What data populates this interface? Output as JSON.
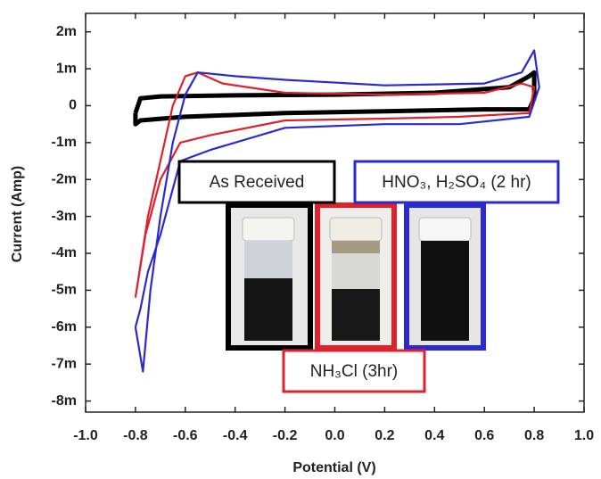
{
  "chart_data": {
    "type": "line",
    "x_label": "Potential (V)",
    "y_label": "Current (Amp)",
    "xlim": [
      -1,
      1
    ],
    "ylim": [
      -0.0083,
      0.0025
    ],
    "xticks": [
      {
        "value": -1,
        "label": "-1.0"
      },
      -0.8,
      -0.6,
      -0.4,
      -0.2,
      {
        "value": 0,
        "label": "0.0"
      },
      0.2,
      0.4,
      0.6,
      0.8,
      {
        "value": 1,
        "label": "1.0"
      }
    ],
    "yticks": [
      {
        "value": 0.002,
        "label": "2m"
      },
      {
        "value": 0.001,
        "label": "1m"
      },
      0,
      {
        "value": -0.001,
        "label": "-1m"
      },
      {
        "value": -0.002,
        "label": "-2m"
      },
      {
        "value": -0.003,
        "label": "-3m"
      },
      {
        "value": -0.004,
        "label": "-4m"
      },
      {
        "value": -0.005,
        "label": "-5m"
      },
      {
        "value": -0.006,
        "label": "-6m"
      },
      {
        "value": -0.007,
        "label": "-7m"
      },
      {
        "value": -0.008,
        "label": "-8m"
      }
    ],
    "series": [
      {
        "name": "As Received",
        "color": "#000000",
        "x": [
          -0.8,
          -0.78,
          -0.7,
          -0.4,
          0,
          0.4,
          0.7,
          0.78,
          0.8,
          0.8,
          0.78,
          0.6,
          0.2,
          -0.2,
          -0.6,
          -0.78,
          -0.8,
          -0.8
        ],
        "values": [
          -0.0002,
          0.0002,
          0.00025,
          0.00028,
          0.0003,
          0.00035,
          0.0005,
          0.0008,
          0.0009,
          0.0002,
          -0.0001,
          -0.0001,
          -0.00015,
          -0.0002,
          -0.0003,
          -0.0004,
          -0.0005,
          -0.0002
        ]
      },
      {
        "name": "NH₃Cl (3hr)",
        "color": "#e0202a",
        "x": [
          -0.8,
          -0.75,
          -0.7,
          -0.65,
          -0.6,
          -0.55,
          -0.45,
          -0.2,
          0.2,
          0.6,
          0.75,
          0.8,
          0.78,
          0.5,
          0.2,
          -0.2,
          -0.5,
          -0.62,
          -0.7,
          -0.76,
          -0.8
        ],
        "values": [
          -0.0052,
          -0.003,
          -0.0015,
          0,
          0.0008,
          0.0009,
          0.0006,
          0.00035,
          0.0003,
          0.00035,
          0.0006,
          0.0005,
          -0.0002,
          -0.0003,
          -0.00035,
          -0.0004,
          -0.0008,
          -0.001,
          -0.002,
          -0.0035,
          -0.0052
        ]
      },
      {
        "name": "HNO₃, H₂SO₄ (2 hr)",
        "color": "#2a2ad0",
        "x": [
          -0.8,
          -0.77,
          -0.74,
          -0.7,
          -0.65,
          -0.6,
          -0.55,
          -0.4,
          -0.2,
          0.2,
          0.6,
          0.75,
          0.8,
          0.82,
          0.78,
          0.5,
          0.2,
          -0.2,
          -0.5,
          -0.62,
          -0.7,
          -0.75,
          -0.78,
          -0.8
        ],
        "values": [
          -0.006,
          -0.0072,
          -0.005,
          -0.003,
          -0.001,
          0.0003,
          0.0009,
          0.0008,
          0.0007,
          0.00055,
          0.0006,
          0.0009,
          0.0015,
          0.0005,
          -0.0003,
          -0.0005,
          -0.0005,
          -0.0006,
          -0.0012,
          -0.0015,
          -0.0035,
          -0.0045,
          -0.0055,
          -0.006
        ]
      }
    ]
  }
}
